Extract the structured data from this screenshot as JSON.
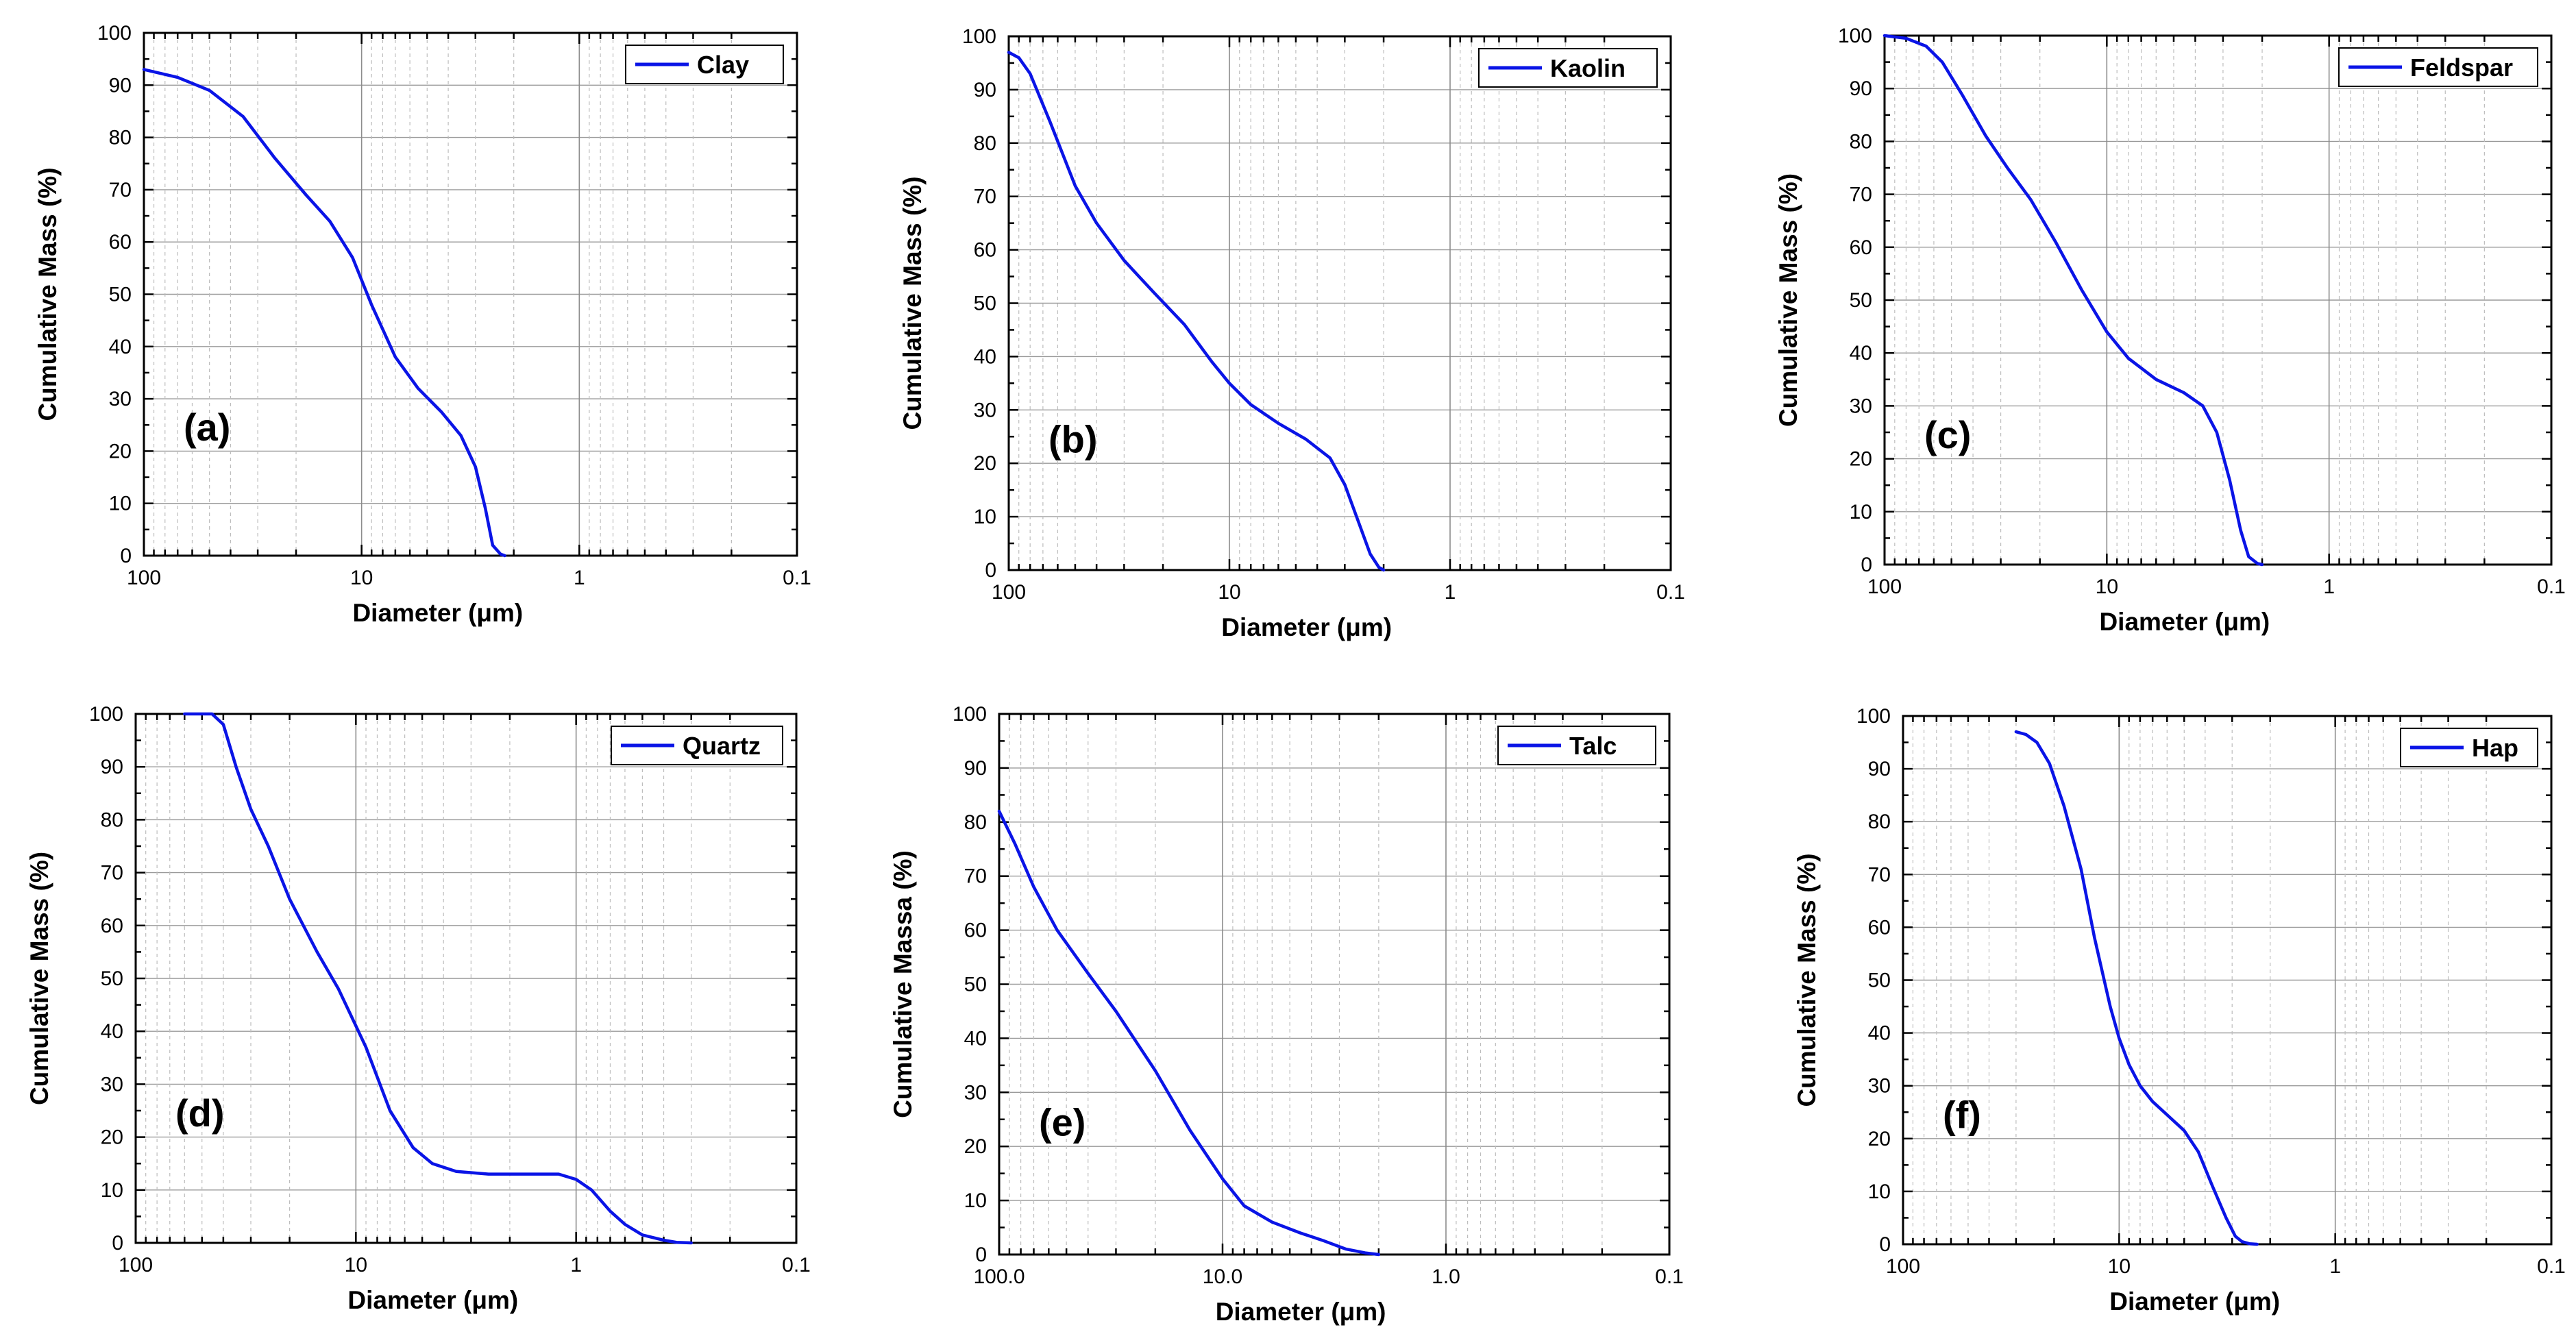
{
  "style": {
    "series_color": "#0a14e6",
    "frame_color": "#000000"
  },
  "chart_data": [
    {
      "type": "line",
      "panel_label": "(a)",
      "legend": "Clay",
      "xlabel": "Diameter (μm)",
      "ylabel": "Cumulative Mass (%)",
      "xscale": "log",
      "xlim": [
        100,
        0.1
      ],
      "ylim": [
        0,
        100
      ],
      "x_ticks": [
        "100",
        "10",
        "1",
        "0.1"
      ],
      "y_ticks": [
        "0",
        "10",
        "20",
        "30",
        "40",
        "50",
        "60",
        "70",
        "80",
        "90",
        "100"
      ],
      "legend_position": "top-right",
      "x": [
        100,
        70,
        50,
        35,
        25,
        18,
        14,
        11,
        9,
        7,
        5.5,
        4.3,
        3.5,
        3.0,
        2.7,
        2.5,
        2.3,
        2.2
      ],
      "y": [
        93,
        91.5,
        89,
        84,
        76,
        69,
        64,
        57,
        48,
        38,
        32,
        27.5,
        23,
        17,
        9,
        2,
        0.3,
        0
      ]
    },
    {
      "type": "line",
      "panel_label": "(b)",
      "legend": "Kaolin",
      "xlabel": "Diameter (μm)",
      "ylabel": "Cumulative Mass (%)",
      "xscale": "log",
      "xlim": [
        100,
        0.1
      ],
      "ylim": [
        0,
        100
      ],
      "x_ticks": [
        "100",
        "10",
        "1",
        "0.1"
      ],
      "y_ticks": [
        "0",
        "10",
        "20",
        "30",
        "40",
        "50",
        "60",
        "70",
        "80",
        "90",
        "100"
      ],
      "legend_position": "top-right",
      "x": [
        100,
        90,
        80,
        65,
        50,
        40,
        30,
        22,
        16,
        12,
        10,
        8,
        6,
        4.5,
        3.5,
        3.0,
        2.6,
        2.3,
        2.1,
        2.0
      ],
      "y": [
        97,
        96,
        93,
        84,
        72,
        65,
        58,
        52,
        46,
        39,
        35,
        31,
        27.5,
        24.5,
        21,
        16,
        9,
        3,
        0.5,
        0
      ]
    },
    {
      "type": "line",
      "panel_label": "(c)",
      "legend": "Feldspar",
      "xlabel": "Diameter (μm)",
      "ylabel": "Cumulative Mass (%)",
      "xscale": "log",
      "xlim": [
        100,
        0.1
      ],
      "ylim": [
        0,
        100
      ],
      "x_ticks": [
        "100",
        "10",
        "1",
        "0.1"
      ],
      "y_ticks": [
        "0",
        "10",
        "20",
        "30",
        "40",
        "50",
        "60",
        "70",
        "80",
        "90",
        "100"
      ],
      "legend_position": "top-right",
      "x": [
        100,
        80,
        65,
        55,
        45,
        35,
        28,
        22,
        17,
        13,
        10,
        8,
        6,
        4.5,
        3.7,
        3.2,
        2.8,
        2.5,
        2.3,
        2.1,
        2.0
      ],
      "y": [
        100,
        99.5,
        98,
        95,
        89,
        81,
        75,
        69,
        61,
        52,
        44,
        39,
        35,
        32.5,
        30,
        25,
        16,
        6.5,
        1.5,
        0.2,
        0
      ]
    },
    {
      "type": "line",
      "panel_label": "(d)",
      "legend": "Quartz",
      "xlabel": "Diameter (μm)",
      "ylabel": "Cumulative Mass (%)",
      "xscale": "log",
      "xlim": [
        100,
        0.1
      ],
      "ylim": [
        0,
        100
      ],
      "x_ticks": [
        "100",
        "10",
        "1",
        "0.1"
      ],
      "y_ticks": [
        "0",
        "10",
        "20",
        "30",
        "40",
        "50",
        "60",
        "70",
        "80",
        "90",
        "100"
      ],
      "legend_position": "top-right",
      "x": [
        60,
        45,
        40,
        35,
        30,
        25,
        20,
        15,
        12,
        9,
        7,
        5.5,
        4.5,
        3.5,
        2.5,
        1.5,
        1.2,
        1.0,
        0.85,
        0.7,
        0.6,
        0.5,
        0.4,
        0.35,
        0.3
      ],
      "y": [
        100,
        100,
        98,
        90,
        82,
        75,
        65,
        55,
        48,
        37,
        25,
        18,
        15,
        13.5,
        13,
        13,
        13,
        12,
        10,
        6,
        3.5,
        1.5,
        0.5,
        0.1,
        0
      ]
    },
    {
      "type": "line",
      "panel_label": "(e)",
      "legend": "Talc",
      "xlabel": "Diameter (μm)",
      "ylabel": "Cumulative Massa (%)",
      "xscale": "log",
      "xlim": [
        100,
        0.1
      ],
      "ylim": [
        0,
        100
      ],
      "x_ticks": [
        "100.0",
        "10.0",
        "1.0",
        "0.1"
      ],
      "y_ticks": [
        "0",
        "10",
        "20",
        "30",
        "40",
        "50",
        "60",
        "70",
        "80",
        "90",
        "100"
      ],
      "legend_position": "top-right",
      "x": [
        100,
        85,
        70,
        55,
        40,
        30,
        20,
        14,
        10,
        8,
        6,
        4.5,
        3.5,
        2.8,
        2.3,
        2.0
      ],
      "y": [
        82,
        76,
        68,
        60,
        52,
        45,
        34,
        23,
        14,
        9,
        6,
        4,
        2.5,
        1,
        0.3,
        0
      ]
    },
    {
      "type": "line",
      "panel_label": "(f)",
      "legend": "Hap",
      "xlabel": "Diameter (μm)",
      "ylabel": "Cumulative Mass (%)",
      "xscale": "log",
      "xlim": [
        100,
        0.1
      ],
      "ylim": [
        0,
        100
      ],
      "x_ticks": [
        "100",
        "10",
        "1",
        "0.1"
      ],
      "y_ticks": [
        "0",
        "10",
        "20",
        "30",
        "40",
        "50",
        "60",
        "70",
        "80",
        "90",
        "100"
      ],
      "legend_position": "top-right",
      "x": [
        30,
        27,
        24,
        21,
        18,
        15,
        13,
        11,
        10,
        9,
        8,
        7,
        6,
        5,
        4.3,
        3.7,
        3.2,
        2.9,
        2.7,
        2.5,
        2.3
      ],
      "y": [
        97,
        96.5,
        95,
        91,
        83,
        71,
        58,
        45,
        39,
        34,
        30,
        27,
        24.5,
        21.5,
        17.5,
        11,
        5,
        1.5,
        0.5,
        0.1,
        0
      ]
    }
  ]
}
